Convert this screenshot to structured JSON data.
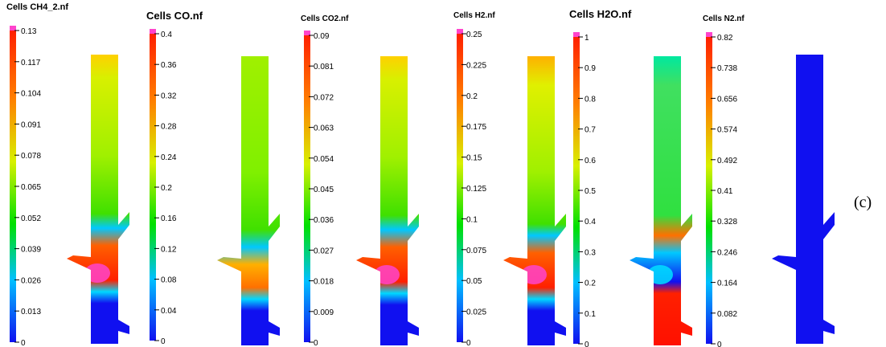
{
  "caption": "(c)",
  "colors": {
    "top": "#ff44cc",
    "stops": [
      "#1010f0",
      "#00c0ff",
      "#00e000",
      "#d8f000",
      "#ff8000",
      "#ff2000"
    ]
  },
  "legends": [
    {
      "title": "Cells CH4_2.nf",
      "ticks": [
        "0.13",
        "0.117",
        "0.104",
        "0.091",
        "0.078",
        "0.065",
        "0.052",
        "0.039",
        "0.026",
        "0.013",
        "0"
      ]
    },
    {
      "title": "Cells CO.nf",
      "ticks": [
        "0.4",
        "0.36",
        "0.32",
        "0.28",
        "0.24",
        "0.2",
        "0.16",
        "0.12",
        "0.08",
        "0.04",
        "0"
      ]
    },
    {
      "title": "Cells CO2.nf",
      "ticks": [
        "0.09",
        "0.081",
        "0.072",
        "0.063",
        "0.054",
        "0.045",
        "0.036",
        "0.027",
        "0.018",
        "0.009",
        "0"
      ]
    },
    {
      "title": "Cells H2.nf",
      "ticks": [
        "0.25",
        "0.225",
        "0.2",
        "0.175",
        "0.15",
        "0.125",
        "0.1",
        "0.075",
        "0.05",
        "0.025",
        "0"
      ]
    },
    {
      "title": "Cells H2O.nf",
      "ticks": [
        "1",
        "0.9",
        "0.8",
        "0.7",
        "0.6",
        "0.5",
        "0.4",
        "0.3",
        "0.2",
        "0.1",
        "0"
      ]
    },
    {
      "title": "Cells N2.nf",
      "ticks": [
        "0.82",
        "0.738",
        "0.656",
        "0.574",
        "0.492",
        "0.41",
        "0.328",
        "0.246",
        "0.164",
        "0.082",
        "0"
      ]
    }
  ],
  "contours": [
    {
      "field": "CH4"
    },
    {
      "field": "CO"
    },
    {
      "field": "CO2"
    },
    {
      "field": "H2"
    },
    {
      "field": "H2O"
    },
    {
      "field": "N2"
    },
    {
      "field": "other"
    }
  ]
}
